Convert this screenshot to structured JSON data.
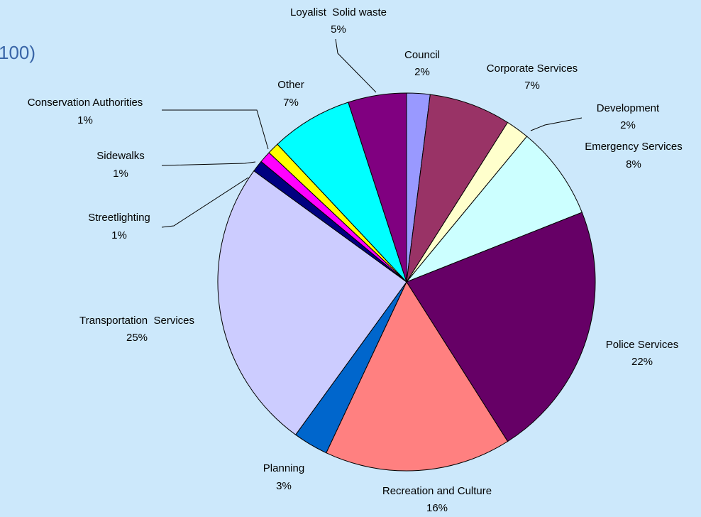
{
  "chart_data": {
    "type": "pie",
    "title": "100)",
    "categories": [
      "Council",
      "Corporate Services",
      "Development",
      "Emergency Services",
      "Police Services",
      "Recreation and Culture",
      "Planning",
      "Transportation  Services",
      "Streetlighting",
      "Sidewalks",
      "Conservation Authorities",
      "Other",
      "Loyalist  Solid waste"
    ],
    "values": [
      2,
      7,
      2,
      8,
      22,
      16,
      3,
      25,
      1,
      1,
      1,
      7,
      5
    ],
    "value_labels": [
      "2%",
      "7%",
      "2%",
      "8%",
      "22%",
      "16%",
      "3%",
      "25%",
      "1%",
      "1%",
      "1%",
      "7%",
      "5%"
    ],
    "colors": [
      "#9999ff",
      "#993366",
      "#ffffcc",
      "#ccffff",
      "#660066",
      "#ff8080",
      "#0066cc",
      "#ccccff",
      "#000080",
      "#ff00ff",
      "#ffff00",
      "#00ffff",
      "#800080"
    ]
  }
}
